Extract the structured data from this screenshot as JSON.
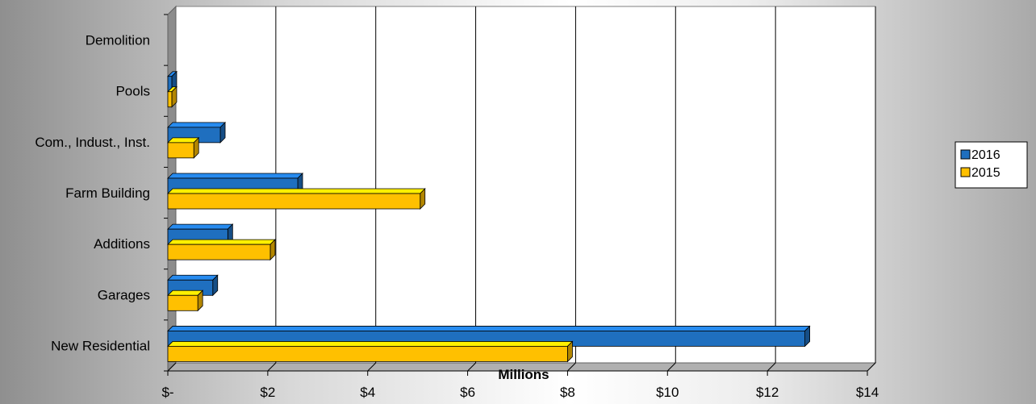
{
  "chart_data": {
    "type": "bar",
    "orientation": "horizontal",
    "three_d": true,
    "categories": [
      "Demolition",
      "Pools",
      "Com., Indust., Inst.",
      "Farm Building",
      "Additions",
      "Garages",
      "New Residential"
    ],
    "series": [
      {
        "name": "2016",
        "color": "#1f6fbf",
        "values": [
          0.0,
          0.08,
          1.05,
          2.6,
          1.2,
          0.9,
          12.75
        ]
      },
      {
        "name": "2015",
        "color": "#ffc000",
        "values": [
          0.0,
          0.08,
          0.52,
          5.05,
          2.05,
          0.6,
          8.0
        ]
      }
    ],
    "xlabel": "Millions",
    "xlim": [
      0,
      14
    ],
    "xticks": [
      0,
      2,
      4,
      6,
      8,
      10,
      12,
      14
    ],
    "xtick_labels": [
      "$-",
      "$2",
      "$4",
      "$6",
      "$8",
      "$10",
      "$12",
      "$14"
    ],
    "gridlines": "vertical",
    "legend_position": "right"
  }
}
